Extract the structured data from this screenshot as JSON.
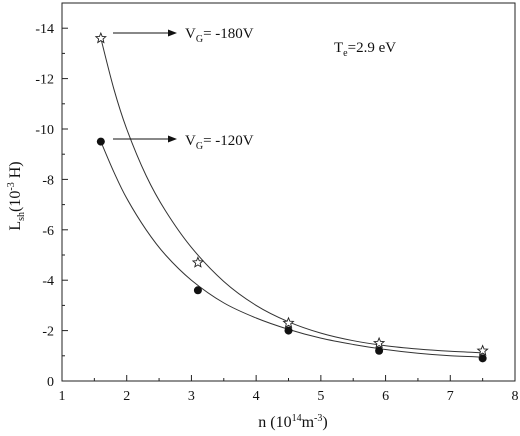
{
  "chart_data": {
    "type": "scatter",
    "xlabel": {
      "main": "n (10",
      "sup": "14",
      "mid": "m",
      "sup2": "-3",
      "end": ")"
    },
    "ylabel": {
      "main": "L",
      "sub": "sh",
      "mid": "(10",
      "sup": "-3",
      "end": " H)"
    },
    "xlim": [
      1,
      8
    ],
    "ylim": [
      0,
      -15
    ],
    "xticks": [
      1,
      2,
      3,
      4,
      5,
      6,
      7,
      8
    ],
    "yticks": [
      0,
      -2,
      -4,
      -6,
      -8,
      -10,
      -12,
      -14
    ],
    "xtick_labels": [
      "1",
      "2",
      "3",
      "4",
      "5",
      "6",
      "7",
      "8"
    ],
    "ytick_labels": [
      "0",
      "-2",
      "-4",
      "-6",
      "-8",
      "-10",
      "-12",
      "-14"
    ],
    "temperature_annotation": {
      "pre": "T",
      "sub": "e",
      "post": "=2.9 eV"
    },
    "series": [
      {
        "label": {
          "pre": "V",
          "sub": "G",
          "post": "= -180V"
        },
        "marker": "star",
        "x": [
          1.6,
          3.1,
          4.5,
          5.9,
          7.5
        ],
        "y": [
          -13.6,
          -4.7,
          -2.3,
          -1.5,
          -1.2
        ],
        "fit_x": [
          1.6,
          1.8,
          2.0,
          2.3,
          2.6,
          3.0,
          3.5,
          4.0,
          4.5,
          5.0,
          5.5,
          6.0,
          6.5,
          7.0,
          7.5
        ],
        "fit_y": [
          -13.6,
          -11.6,
          -10.0,
          -8.15,
          -6.75,
          -5.3,
          -3.95,
          -3.0,
          -2.35,
          -1.9,
          -1.6,
          -1.4,
          -1.27,
          -1.18,
          -1.12
        ]
      },
      {
        "label": {
          "pre": "V",
          "sub": "G",
          "post": "= -120V"
        },
        "marker": "circle",
        "x": [
          1.6,
          3.1,
          4.5,
          5.9,
          7.5
        ],
        "y": [
          -9.5,
          -3.6,
          -2.0,
          -1.2,
          -0.9
        ],
        "fit_x": [
          1.6,
          1.8,
          2.0,
          2.3,
          2.6,
          3.0,
          3.5,
          4.0,
          4.5,
          5.0,
          5.5,
          6.0,
          6.5,
          7.0,
          7.5
        ],
        "fit_y": [
          -9.5,
          -8.3,
          -7.25,
          -6.0,
          -5.0,
          -4.0,
          -3.1,
          -2.5,
          -2.05,
          -1.7,
          -1.45,
          -1.25,
          -1.1,
          -1.0,
          -0.95
        ]
      }
    ]
  }
}
